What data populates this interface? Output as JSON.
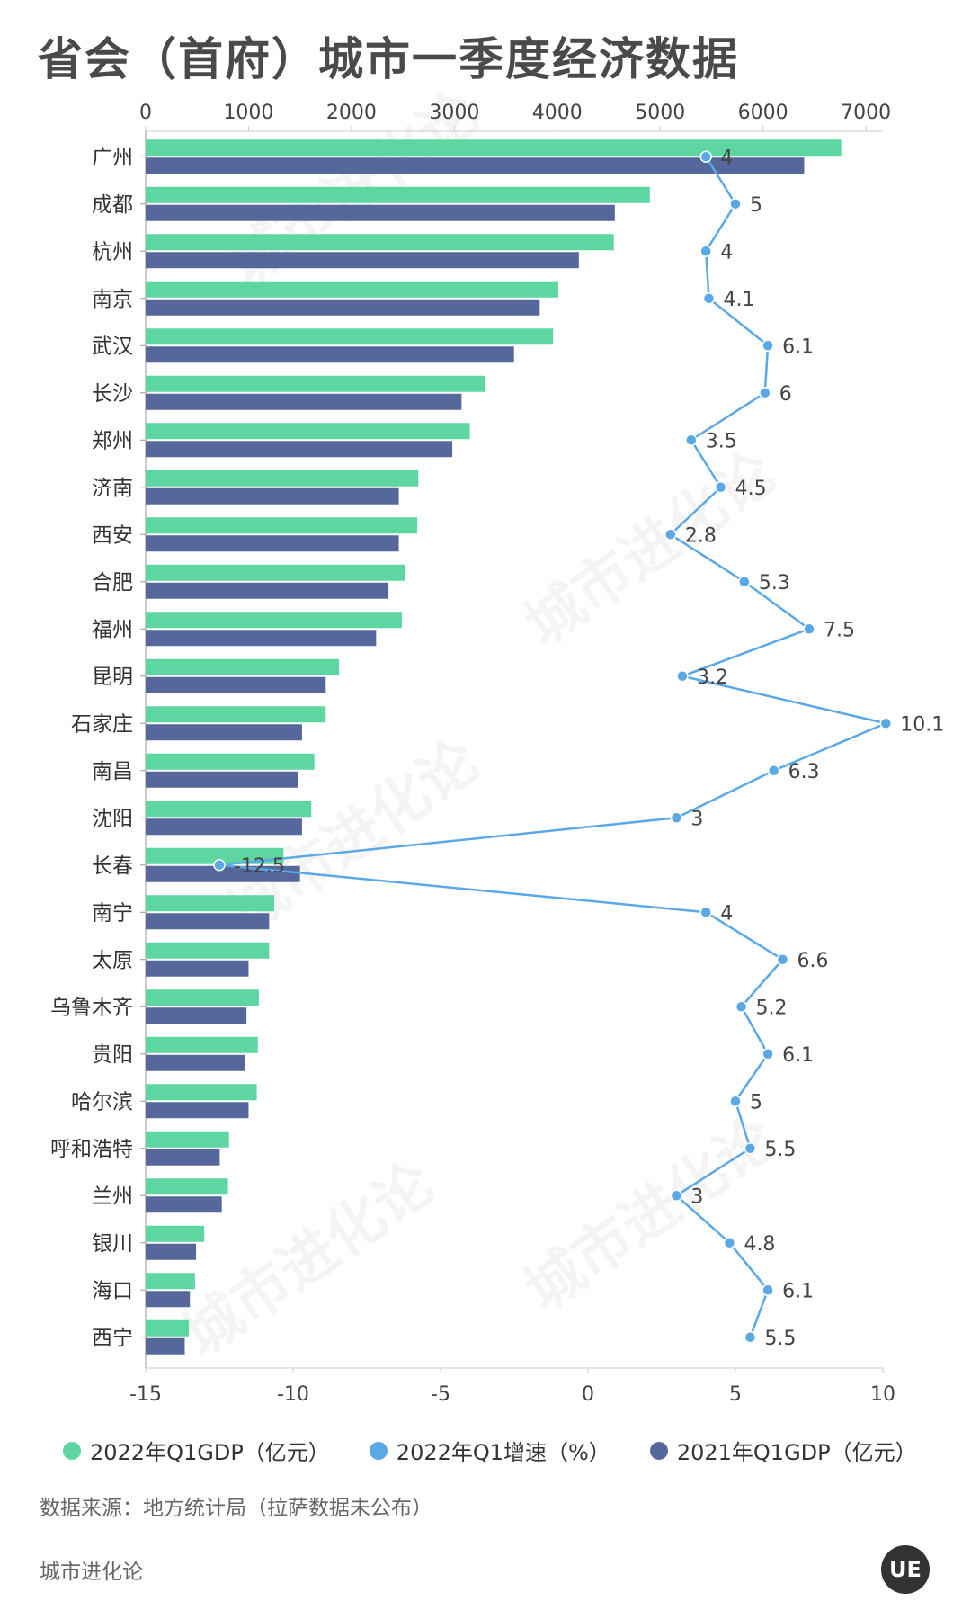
{
  "title": "省会（首府）城市一季度经济数据",
  "chart_data": {
    "type": "bar",
    "categories": [
      "广州",
      "成都",
      "杭州",
      "南京",
      "武汉",
      "长沙",
      "郑州",
      "济南",
      "西安",
      "合肥",
      "福州",
      "昆明",
      "石家庄",
      "南昌",
      "沈阳",
      "长春",
      "南宁",
      "太原",
      "乌鲁木齐",
      "贵阳",
      "哈尔滨",
      "呼和浩特",
      "兰州",
      "银川",
      "海口",
      "西宁"
    ],
    "series": [
      {
        "name": "2022年Q1GDP（亿元）",
        "color": "#5dd6a1",
        "values": [
          6760,
          4900,
          4550,
          4010,
          3960,
          3300,
          3150,
          2650,
          2640,
          2520,
          2490,
          1880,
          1750,
          1640,
          1610,
          1340,
          1250,
          1200,
          1100,
          1090,
          1080,
          810,
          800,
          570,
          480,
          420
        ]
      },
      {
        "name": "2021年Q1GDP（亿元）",
        "color": "#56689b",
        "values": [
          6400,
          4560,
          4210,
          3830,
          3580,
          3070,
          2980,
          2460,
          2460,
          2360,
          2240,
          1750,
          1520,
          1480,
          1520,
          1500,
          1200,
          1000,
          980,
          970,
          1000,
          720,
          740,
          490,
          430,
          380
        ]
      },
      {
        "name": "2022年Q1增速（%）",
        "color": "#5aa9e6",
        "type": "line",
        "values": [
          4,
          5,
          4,
          4.1,
          6.1,
          6,
          3.5,
          4.5,
          2.8,
          5.3,
          7.5,
          3.2,
          10.1,
          6.3,
          3,
          -12.5,
          4,
          6.6,
          5.2,
          6.1,
          5,
          5.5,
          3,
          4.8,
          6.1,
          5.5
        ]
      }
    ],
    "x_top": {
      "ticks": [
        "0",
        "1000",
        "2000",
        "3000",
        "4000",
        "5000",
        "6000",
        "7000"
      ],
      "range": [
        0,
        7000
      ]
    },
    "x_bottom": {
      "ticks": [
        "-15",
        "-10",
        "-5",
        "0",
        "5",
        "10"
      ],
      "range": [
        -15,
        10
      ]
    }
  },
  "legend": [
    {
      "label": "2022年Q1GDP（亿元）",
      "color": "#5dd6a1"
    },
    {
      "label": "2022年Q1增速（%）",
      "color": "#5aa9e6"
    },
    {
      "label": "2021年Q1GDP（亿元）",
      "color": "#56689b"
    }
  ],
  "footer": {
    "source": "数据来源：地方统计局（拉萨数据未公布）",
    "brand": "城市进化论",
    "logo": "UE"
  }
}
